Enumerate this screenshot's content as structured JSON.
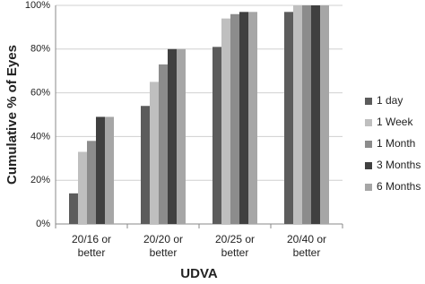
{
  "chart_data": {
    "type": "bar",
    "x_label": "UDVA",
    "y_label": "Cumulative % of Eyes",
    "categories": [
      "20/16 or better",
      "20/20 or better",
      "20/25 or better",
      "20/40 or better"
    ],
    "series": [
      {
        "name": "1 day",
        "color": "#5c5c5c",
        "values": [
          14,
          54,
          81,
          97
        ]
      },
      {
        "name": "1 Week",
        "color": "#bfbfbf",
        "values": [
          33,
          65,
          94,
          100
        ]
      },
      {
        "name": "1 Month",
        "color": "#8c8c8c",
        "values": [
          38,
          73,
          96,
          100
        ]
      },
      {
        "name": "3 Months",
        "color": "#404040",
        "values": [
          49,
          80,
          97,
          100
        ]
      },
      {
        "name": "6 Months",
        "color": "#a6a6a6",
        "values": [
          49,
          80,
          97,
          100
        ]
      }
    ],
    "ylim": [
      0,
      100
    ],
    "yticks": [
      {
        "value": 0,
        "label": "0%"
      },
      {
        "value": 20,
        "label": "20%"
      },
      {
        "value": 40,
        "label": "40%"
      },
      {
        "value": 60,
        "label": "60%"
      },
      {
        "value": 80,
        "label": "80%"
      },
      {
        "value": 100,
        "label": "100%"
      }
    ],
    "grid": true,
    "legend": "right"
  }
}
